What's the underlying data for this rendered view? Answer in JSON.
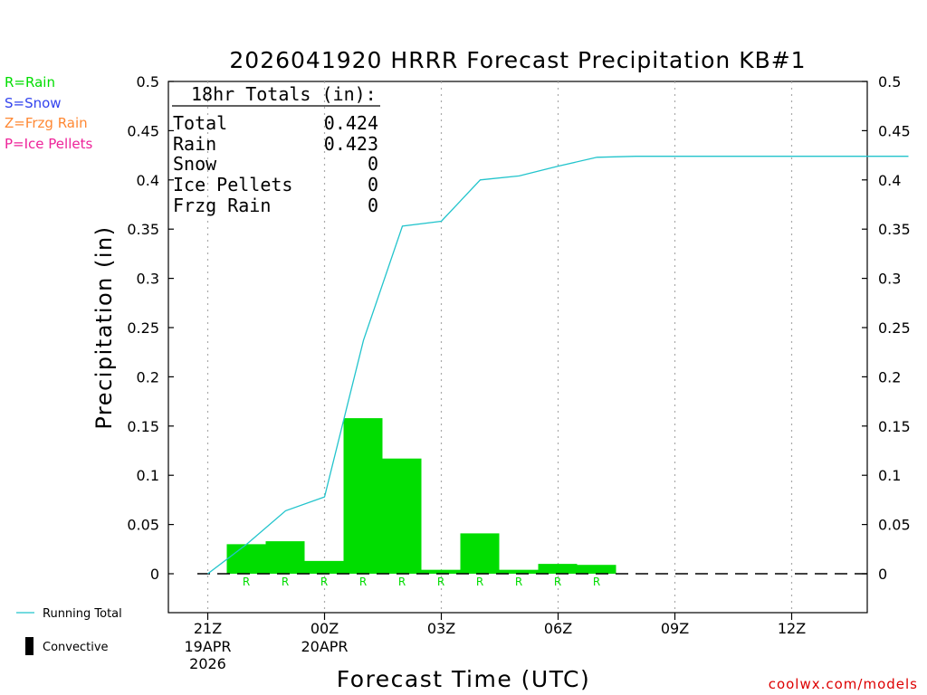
{
  "colors": {
    "rain": "#00dd00",
    "running_total": "#22c4cc",
    "snow": "#3344ee",
    "frzg_rain": "#ff8833",
    "ice_pellets": "#ee2299",
    "credit": "#dd0000",
    "axis": "#000000",
    "grid": "#aaaaaa"
  },
  "legend": {
    "rain": "R=Rain",
    "snow": "S=Snow",
    "frzg_rain": "Z=Frzg Rain",
    "ice_pellets": "P=Ice Pellets",
    "running_total": "Running Total",
    "convective": "Convective"
  },
  "totals": {
    "header": "18hr Totals (in):",
    "rows": [
      {
        "label": "Total",
        "value": "0.424"
      },
      {
        "label": "Rain",
        "value": "0.423"
      },
      {
        "label": "Snow",
        "value": "0"
      },
      {
        "label": "Ice Pellets",
        "value": "0"
      },
      {
        "label": "Frzg Rain",
        "value": "0"
      }
    ]
  },
  "credit": "coolwx.com/models",
  "chart_data": {
    "type": "bar",
    "title": "2026041920 HRRR Forecast Precipitation KB#1",
    "xlabel": "Forecast Time (UTC)",
    "ylabel": "Precipitation (in)",
    "ylim": [
      0,
      0.5
    ],
    "yticks": [
      "0",
      "0.05",
      "0.1",
      "0.15",
      "0.2",
      "0.25",
      "0.3",
      "0.35",
      "0.4",
      "0.45",
      "0.5"
    ],
    "xticks": [
      {
        "hour": 0,
        "label": "21Z",
        "sub1": "19APR",
        "sub2": "2026"
      },
      {
        "hour": 3,
        "label": "00Z",
        "sub1": "20APR",
        "sub2": ""
      },
      {
        "hour": 6,
        "label": "03Z",
        "sub1": "",
        "sub2": ""
      },
      {
        "hour": 9,
        "label": "06Z",
        "sub1": "",
        "sub2": ""
      },
      {
        "hour": 12,
        "label": "09Z",
        "sub1": "",
        "sub2": ""
      },
      {
        "hour": 15,
        "label": "12Z",
        "sub1": "",
        "sub2": ""
      }
    ],
    "grid": "vertical dotted at tick hours",
    "hourly_precip": {
      "name": "Rain",
      "hours": [
        1,
        2,
        3,
        4,
        5,
        6,
        7,
        8,
        9,
        10,
        11,
        12,
        13,
        14,
        15,
        16,
        17,
        18
      ],
      "values": [
        0.03,
        0.033,
        0.013,
        0.158,
        0.117,
        0.004,
        0.041,
        0.004,
        0.01,
        0.009,
        0,
        0,
        0,
        0,
        0,
        0,
        0,
        0
      ],
      "type_codes": [
        "R",
        "R",
        "R",
        "R",
        "R",
        "R",
        "R",
        "R",
        "R",
        "R",
        "",
        "",
        "",
        "",
        "",
        "",
        "",
        ""
      ]
    },
    "running_total": {
      "name": "Running Total",
      "hours": [
        0,
        1,
        2,
        3,
        4,
        5,
        6,
        7,
        8,
        9,
        10,
        11,
        12,
        13,
        14,
        15,
        16,
        17,
        18
      ],
      "values": [
        0,
        0.03,
        0.064,
        0.078,
        0.237,
        0.353,
        0.358,
        0.4,
        0.404,
        0.414,
        0.423,
        0.424,
        0.424,
        0.424,
        0.424,
        0.424,
        0.424,
        0.424,
        0.424
      ]
    }
  }
}
